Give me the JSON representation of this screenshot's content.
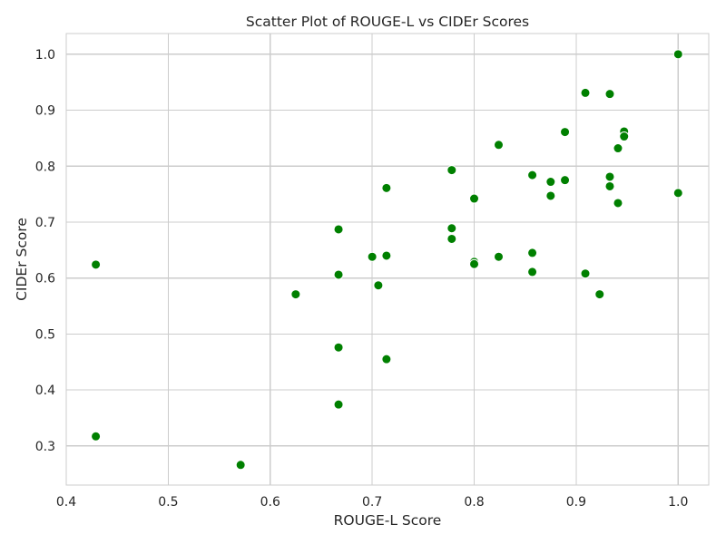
{
  "chart_data": {
    "type": "scatter",
    "title": "Scatter Plot of ROUGE-L vs CIDEr Scores",
    "xlabel": "ROUGE-L Score",
    "ylabel": "CIDEr Score",
    "xlim": [
      0.4,
      1.03
    ],
    "ylim": [
      0.23,
      1.037
    ],
    "xticks": [
      "0.4",
      "0.5",
      "0.6",
      "0.7",
      "0.8",
      "0.9",
      "1.0"
    ],
    "yticks": [
      "0.3",
      "0.4",
      "0.5",
      "0.6",
      "0.7",
      "0.8",
      "0.9",
      "1.0"
    ],
    "grid": true,
    "point_color": "#008000",
    "points": [
      {
        "x": 1.0,
        "y": 1.0
      },
      {
        "x": 0.909,
        "y": 0.931
      },
      {
        "x": 0.933,
        "y": 0.929
      },
      {
        "x": 0.889,
        "y": 0.861
      },
      {
        "x": 0.947,
        "y": 0.862
      },
      {
        "x": 0.947,
        "y": 0.853
      },
      {
        "x": 0.941,
        "y": 0.832
      },
      {
        "x": 0.824,
        "y": 0.838
      },
      {
        "x": 0.778,
        "y": 0.793
      },
      {
        "x": 0.857,
        "y": 0.784
      },
      {
        "x": 0.933,
        "y": 0.781
      },
      {
        "x": 0.875,
        "y": 0.772
      },
      {
        "x": 0.889,
        "y": 0.775
      },
      {
        "x": 0.933,
        "y": 0.764
      },
      {
        "x": 0.714,
        "y": 0.761
      },
      {
        "x": 0.875,
        "y": 0.747
      },
      {
        "x": 0.8,
        "y": 0.742
      },
      {
        "x": 1.0,
        "y": 0.752
      },
      {
        "x": 0.941,
        "y": 0.734
      },
      {
        "x": 0.667,
        "y": 0.687
      },
      {
        "x": 0.778,
        "y": 0.689
      },
      {
        "x": 0.778,
        "y": 0.67
      },
      {
        "x": 0.857,
        "y": 0.645
      },
      {
        "x": 0.7,
        "y": 0.638
      },
      {
        "x": 0.714,
        "y": 0.64
      },
      {
        "x": 0.824,
        "y": 0.638
      },
      {
        "x": 0.8,
        "y": 0.629
      },
      {
        "x": 0.8,
        "y": 0.625
      },
      {
        "x": 0.429,
        "y": 0.624
      },
      {
        "x": 0.857,
        "y": 0.611
      },
      {
        "x": 0.909,
        "y": 0.608
      },
      {
        "x": 0.667,
        "y": 0.606
      },
      {
        "x": 0.706,
        "y": 0.587
      },
      {
        "x": 0.625,
        "y": 0.571
      },
      {
        "x": 0.923,
        "y": 0.571
      },
      {
        "x": 0.667,
        "y": 0.476
      },
      {
        "x": 0.714,
        "y": 0.455
      },
      {
        "x": 0.667,
        "y": 0.374
      },
      {
        "x": 0.429,
        "y": 0.317
      },
      {
        "x": 0.571,
        "y": 0.266
      }
    ]
  }
}
